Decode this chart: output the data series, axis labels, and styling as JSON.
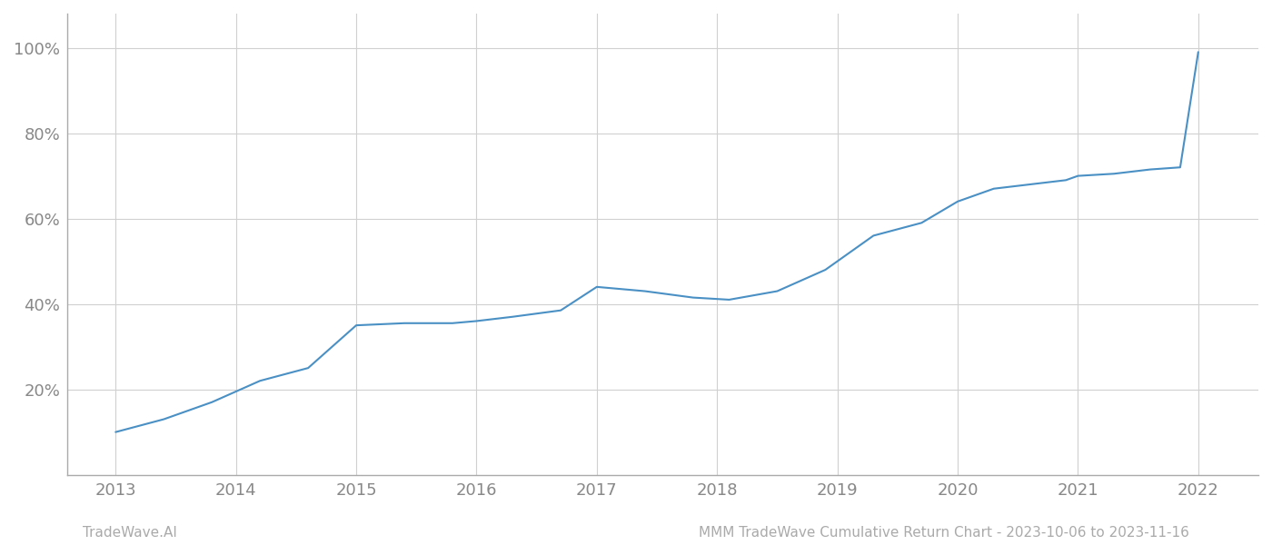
{
  "x_years": [
    2013.0,
    2013.4,
    2013.8,
    2014.2,
    2014.6,
    2015.0,
    2015.4,
    2015.8,
    2016.0,
    2016.3,
    2016.7,
    2017.0,
    2017.4,
    2017.8,
    2018.1,
    2018.5,
    2018.9,
    2019.3,
    2019.7,
    2020.0,
    2020.3,
    2020.6,
    2020.9,
    2021.0,
    2021.3,
    2021.6,
    2021.85,
    2022.0
  ],
  "y_values": [
    10,
    13,
    17,
    22,
    25,
    35,
    35.5,
    35.5,
    36,
    37,
    38.5,
    44,
    43,
    41.5,
    41,
    43,
    48,
    56,
    59,
    64,
    67,
    68,
    69,
    70,
    70.5,
    71.5,
    72,
    99
  ],
  "line_color": "#4a90c4",
  "line_width": 1.5,
  "xlim": [
    2012.6,
    2022.5
  ],
  "ylim": [
    0,
    108
  ],
  "yticks": [
    20,
    40,
    60,
    80,
    100
  ],
  "ytick_labels": [
    "20%",
    "40%",
    "60%",
    "80%",
    "100%"
  ],
  "xticks": [
    2013,
    2014,
    2015,
    2016,
    2017,
    2018,
    2019,
    2020,
    2021,
    2022
  ],
  "grid_color": "#d0d0d0",
  "bg_color": "#ffffff",
  "footer_left": "TradeWave.AI",
  "footer_right": "MMM TradeWave Cumulative Return Chart - 2023-10-06 to 2023-11-16",
  "footer_color": "#aaaaaa",
  "footer_fontsize": 11,
  "tick_color": "#888888",
  "tick_fontsize": 13,
  "spine_color": "#aaaaaa"
}
